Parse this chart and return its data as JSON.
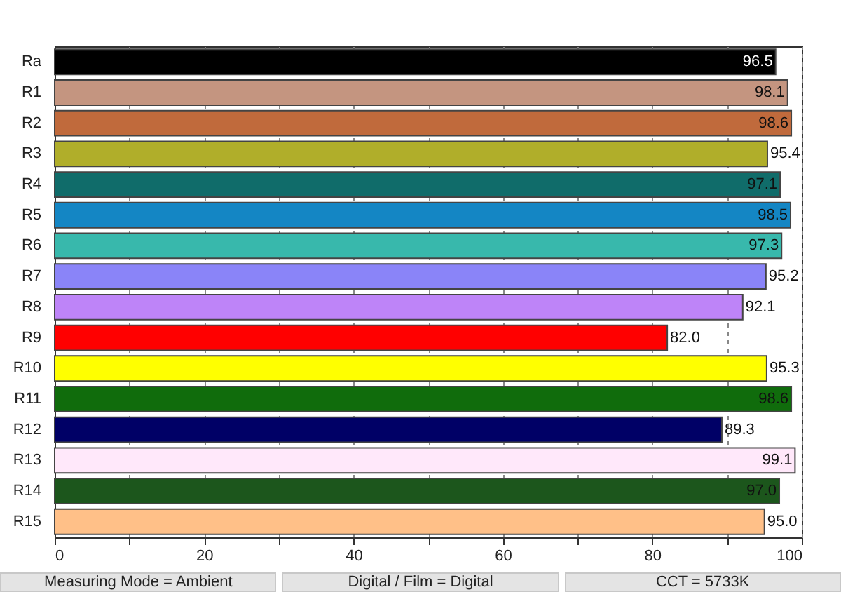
{
  "chart_data": {
    "type": "bar",
    "orientation": "horizontal",
    "categories": [
      "Ra",
      "R1",
      "R2",
      "R3",
      "R4",
      "R5",
      "R6",
      "R7",
      "R8",
      "R9",
      "R10",
      "R11",
      "R12",
      "R13",
      "R14",
      "R15"
    ],
    "values": [
      96.5,
      98.1,
      98.6,
      95.4,
      97.1,
      98.5,
      97.3,
      95.2,
      92.1,
      82.0,
      95.3,
      98.6,
      89.3,
      99.1,
      97.0,
      95.0
    ],
    "value_labels": [
      "96.5",
      "98.1",
      "98.6",
      "95.4",
      "97.1",
      "98.5",
      "97.3",
      "95.2",
      "92.1",
      "82.0",
      "95.3",
      "98.6",
      "89.3",
      "99.1",
      "97.0",
      "95.0"
    ],
    "colors": [
      "#000000",
      "#c49580",
      "#c06a3c",
      "#b0ae2a",
      "#106c6a",
      "#1486c4",
      "#38b8ac",
      "#8a84f8",
      "#be84f8",
      "#ff0000",
      "#ffff00",
      "#106c0c",
      "#000066",
      "#ffe8fa",
      "#1c561c",
      "#ffc088"
    ],
    "xlim": [
      0,
      100
    ],
    "xticks": [
      0,
      {
        "value": 10,
        "label": null
      },
      20,
      {
        "value": 30,
        "label": null
      },
      40,
      {
        "value": 50,
        "label": null
      },
      60,
      {
        "value": 70,
        "label": null
      },
      80,
      {
        "value": 90,
        "label": null
      },
      100
    ],
    "grid": "x",
    "annotations": [
      "Measuring Mode = Ambient",
      "Digital / Film = Digital",
      "CCT = 5733K"
    ]
  }
}
